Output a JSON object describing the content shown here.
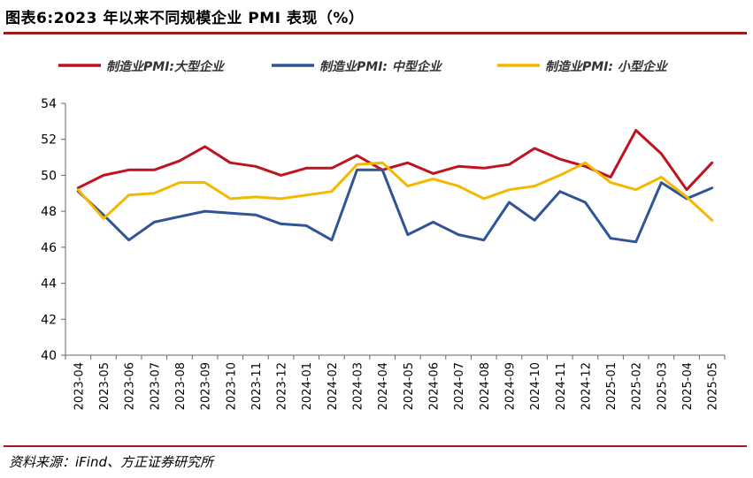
{
  "header": {
    "title": "图表6:2023 年以来不同规模企业 PMI 表现（%）"
  },
  "footer": {
    "source": "资料来源：iFind、方正证券研究所"
  },
  "chart_data": {
    "type": "line",
    "title": "",
    "xlabel": "",
    "ylabel": "",
    "ylim": [
      40,
      54
    ],
    "yticks": [
      40,
      42,
      44,
      46,
      48,
      50,
      52,
      54
    ],
    "grid": false,
    "legend_position": "top",
    "categories": [
      "2023-04",
      "2023-05",
      "2023-06",
      "2023-07",
      "2023-08",
      "2023-09",
      "2023-10",
      "2023-11",
      "2023-12",
      "2024-01",
      "2024-02",
      "2024-03",
      "2024-04",
      "2024-05",
      "2024-06",
      "2024-07",
      "2024-08",
      "2024-09",
      "2024-10",
      "2024-11",
      "2024-12",
      "2025-01",
      "2025-02",
      "2025-03",
      "2025-04",
      "2025-05"
    ],
    "series": [
      {
        "name": "制造业PMI:大型企业",
        "color": "#c0121f",
        "values": [
          49.3,
          50.0,
          50.3,
          50.3,
          50.8,
          51.6,
          50.7,
          50.5,
          50.0,
          50.4,
          50.4,
          51.1,
          50.3,
          50.7,
          50.1,
          50.5,
          50.4,
          50.6,
          51.5,
          50.9,
          50.5,
          49.9,
          52.5,
          51.2,
          49.2,
          50.7
        ]
      },
      {
        "name": "制造业PMI: 中型企业",
        "color": "#2f5597",
        "values": [
          49.1,
          47.8,
          46.4,
          47.4,
          47.7,
          48.0,
          47.9,
          47.8,
          47.3,
          47.2,
          46.4,
          50.3,
          50.3,
          46.7,
          47.4,
          46.7,
          46.4,
          48.5,
          47.5,
          49.1,
          48.5,
          46.5,
          46.3,
          49.6,
          48.7,
          49.3
        ]
      },
      {
        "name": "制造业PMI: 小型企业",
        "color": "#f5b800",
        "values": [
          49.2,
          47.6,
          48.9,
          49.0,
          49.6,
          49.6,
          48.7,
          48.8,
          48.7,
          48.9,
          49.1,
          50.6,
          50.7,
          49.4,
          49.8,
          49.4,
          48.7,
          49.2,
          49.4,
          50.0,
          50.7,
          49.6,
          49.2,
          49.9,
          48.8,
          47.5
        ]
      }
    ]
  }
}
